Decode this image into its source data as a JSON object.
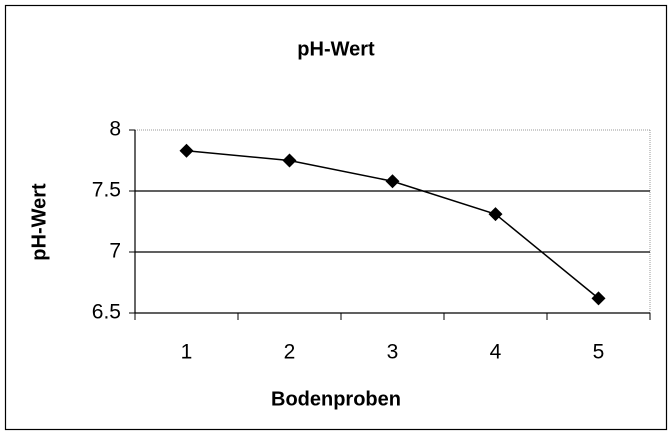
{
  "chart_data": {
    "type": "line",
    "title": "pH-Wert",
    "x_label": "Bodenproben",
    "y_label": "pH-Wert",
    "categories": [
      "1",
      "2",
      "3",
      "4",
      "5"
    ],
    "series": [
      {
        "name": "pH-Wert",
        "color": "#000000",
        "values": [
          7.83,
          7.75,
          7.58,
          7.31,
          6.62
        ]
      }
    ],
    "ylim": [
      6.5,
      8
    ],
    "yticks": [
      6.5,
      7,
      7.5,
      8
    ],
    "grid": true,
    "marker": "diamond"
  }
}
